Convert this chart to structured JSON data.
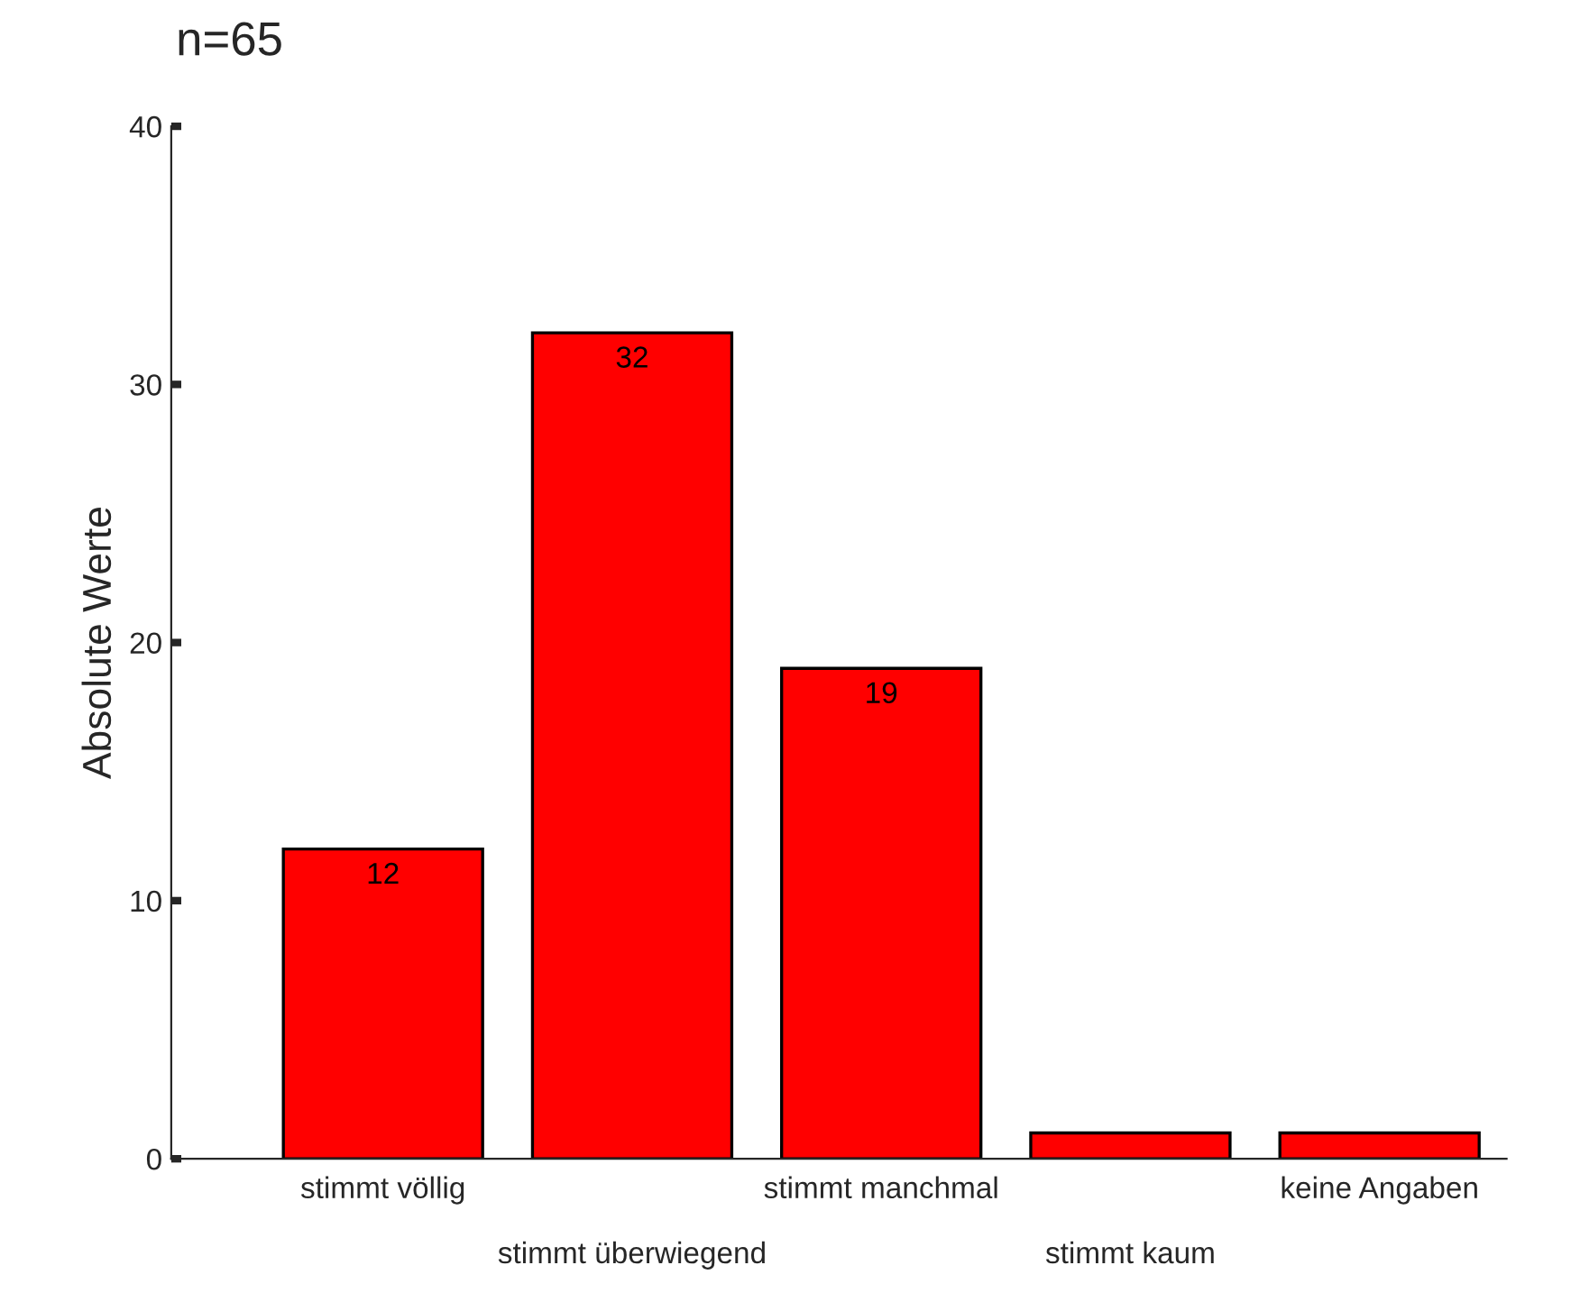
{
  "chart_data": {
    "type": "bar",
    "title": "n=65",
    "ylabel": "Absolute Werte",
    "categories": [
      "stimmt völlig",
      "stimmt überwiegend",
      "stimmt manchmal",
      "stimmt kaum",
      "keine Angaben"
    ],
    "values": [
      12,
      32,
      19,
      1,
      1
    ],
    "value_labels": [
      "12",
      "32",
      "19",
      null,
      null
    ],
    "color": "#ff0000",
    "ylim": [
      0,
      40
    ],
    "yticks": [
      0,
      10,
      20,
      30,
      40
    ],
    "grid": false
  }
}
